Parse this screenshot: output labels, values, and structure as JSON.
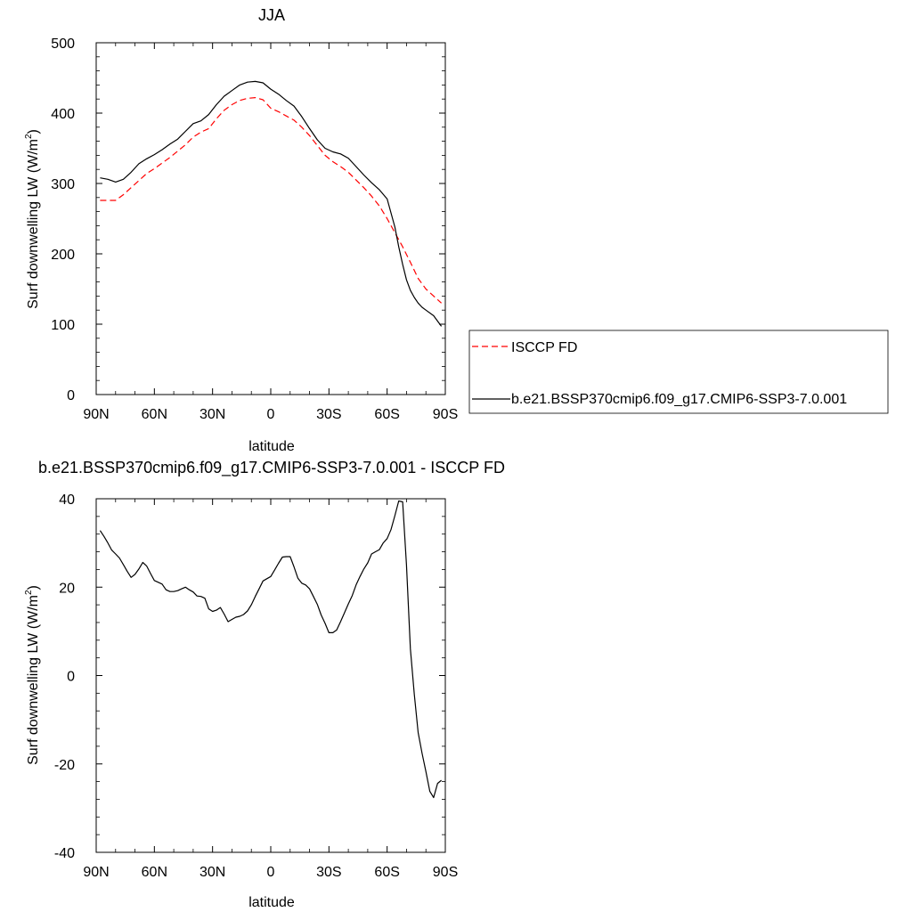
{
  "chart_data": [
    {
      "type": "line",
      "title": "JJA",
      "xlabel": "latitude",
      "ylabel": "Surf downwelling LW (W/m",
      "ylabel_sup": "2",
      "ylabel_close": ")",
      "xlim": [
        90,
        -90
      ],
      "ylim": [
        0,
        500
      ],
      "x_ticks": [
        {
          "value": 90,
          "label": "90N"
        },
        {
          "value": 60,
          "label": "60N"
        },
        {
          "value": 30,
          "label": "30N"
        },
        {
          "value": 0,
          "label": "0"
        },
        {
          "value": -30,
          "label": "30S"
        },
        {
          "value": -60,
          "label": "60S"
        },
        {
          "value": -90,
          "label": "90S"
        }
      ],
      "y_ticks": [
        0,
        100,
        200,
        300,
        400,
        500
      ],
      "grid": false,
      "legend_position": "outside-right",
      "series": [
        {
          "name": "ISCCP FD",
          "color": "#ff0000",
          "style": "dashed",
          "x": [
            88,
            84,
            80,
            76,
            72,
            68,
            64,
            60,
            56,
            52,
            48,
            44,
            40,
            36,
            32,
            28,
            24,
            20,
            16,
            12,
            8,
            4,
            0,
            -4,
            -8,
            -12,
            -16,
            -20,
            -24,
            -28,
            -32,
            -36,
            -40,
            -44,
            -48,
            -52,
            -56,
            -60,
            -64,
            -68,
            -72,
            -76,
            -80,
            -84,
            -88
          ],
          "y": [
            276,
            276,
            276,
            284,
            294,
            304,
            314,
            321,
            329,
            337,
            346,
            355,
            366,
            373,
            378,
            392,
            404,
            412,
            418,
            421,
            422,
            419,
            407,
            402,
            396,
            390,
            380,
            368,
            354,
            340,
            331,
            324,
            316,
            305,
            294,
            282,
            268,
            250,
            230,
            210,
            188,
            165,
            150,
            140,
            130
          ]
        },
        {
          "name": "b.e21.BSSP370cmip6.f09_g17.CMIP6-SSP3-7.0.001",
          "color": "#000000",
          "style": "solid",
          "x": [
            88,
            84,
            80,
            76,
            72,
            68,
            64,
            60,
            56,
            52,
            48,
            44,
            40,
            36,
            32,
            28,
            24,
            20,
            16,
            12,
            8,
            4,
            0,
            -4,
            -8,
            -12,
            -16,
            -20,
            -24,
            -28,
            -32,
            -36,
            -40,
            -44,
            -48,
            -52,
            -56,
            -60,
            -64,
            -66,
            -68,
            -70,
            -72,
            -74,
            -76,
            -78,
            -80,
            -84,
            -88
          ],
          "y": [
            308,
            306,
            302,
            306,
            316,
            328,
            335,
            341,
            348,
            356,
            363,
            374,
            385,
            389,
            398,
            412,
            424,
            432,
            440,
            444,
            445,
            443,
            434,
            427,
            418,
            410,
            395,
            378,
            362,
            350,
            345,
            342,
            336,
            324,
            312,
            301,
            291,
            278,
            238,
            210,
            185,
            163,
            148,
            138,
            130,
            124,
            120,
            112,
            97
          ]
        }
      ]
    },
    {
      "type": "line",
      "title": "b.e21.BSSP370cmip6.f09_g17.CMIP6-SSP3-7.0.001 - ISCCP FD",
      "xlabel": "latitude",
      "ylabel": "Surf downwelling LW (W/m",
      "ylabel_sup": "2",
      "ylabel_close": ")",
      "xlim": [
        90,
        -90
      ],
      "ylim": [
        -40,
        40
      ],
      "x_ticks": [
        {
          "value": 90,
          "label": "90N"
        },
        {
          "value": 60,
          "label": "60N"
        },
        {
          "value": 30,
          "label": "30N"
        },
        {
          "value": 0,
          "label": "0"
        },
        {
          "value": -30,
          "label": "30S"
        },
        {
          "value": -60,
          "label": "60S"
        },
        {
          "value": -90,
          "label": "90S"
        }
      ],
      "y_ticks": [
        -40,
        -20,
        0,
        20,
        40
      ],
      "grid": false,
      "series": [
        {
          "color": "#000000",
          "style": "solid",
          "x": [
            88,
            86,
            84,
            82,
            80,
            78,
            76,
            74,
            72,
            70,
            68,
            66,
            64,
            62,
            60,
            58,
            56,
            54,
            52,
            50,
            48,
            46,
            44,
            42,
            40,
            38,
            36,
            34,
            32,
            30,
            28,
            26,
            24,
            22,
            20,
            18,
            16,
            14,
            12,
            10,
            8,
            6,
            4,
            2,
            0,
            -2,
            -4,
            -6,
            -8,
            -10,
            -12,
            -14,
            -16,
            -18,
            -20,
            -22,
            -24,
            -26,
            -28,
            -30,
            -32,
            -34,
            -36,
            -38,
            -40,
            -42,
            -44,
            -46,
            -48,
            -50,
            -52,
            -54,
            -56,
            -58,
            -60,
            -62,
            -64,
            -66,
            -68,
            -70,
            -72,
            -74,
            -76,
            -78,
            -80,
            -82,
            -84,
            -86,
            -88
          ],
          "y": [
            32.8,
            31.5,
            30,
            28.4,
            27.5,
            26.6,
            25.1,
            23.6,
            22.2,
            22.9,
            24.1,
            25.6,
            24.8,
            23.1,
            21.5,
            21.1,
            20.7,
            19.4,
            19,
            19,
            19.2,
            19.6,
            20,
            19.4,
            18.9,
            18,
            17.9,
            17.5,
            15.1,
            14.5,
            14.8,
            15.4,
            13.9,
            12.2,
            12.7,
            13.2,
            13.4,
            13.8,
            14.6,
            16,
            17.9,
            19.6,
            21.4,
            21.9,
            22.4,
            23.9,
            25.4,
            26.8,
            26.9,
            26.9,
            24.6,
            22,
            20.9,
            20.5,
            19.6,
            17.9,
            16.1,
            13.7,
            11.8,
            9.7,
            9.7,
            10.3,
            12.2,
            14.2,
            16.2,
            18.1,
            20.5,
            22.4,
            24.1,
            25.5,
            27.5,
            28,
            28.5,
            30,
            31,
            33,
            36.2,
            39.5,
            39.3,
            25,
            6,
            -4.3,
            -12.9,
            -17.6,
            -21.7,
            -26.2,
            -27.6,
            -24.4,
            -23.7
          ]
        }
      ]
    }
  ]
}
